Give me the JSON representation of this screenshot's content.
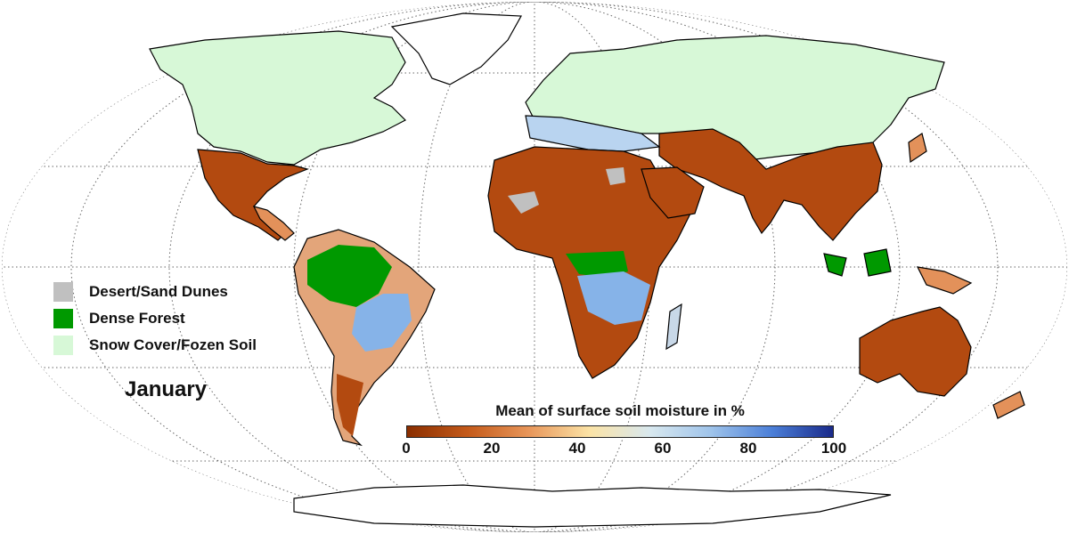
{
  "legend": [
    {
      "label": "Desert/Sand Dunes",
      "color": "#c0c0c0"
    },
    {
      "label": "Dense Forest",
      "color": "#009900"
    },
    {
      "label": "Snow Cover/Fozen Soil",
      "color": "#d7f8d7"
    }
  ],
  "month": "January",
  "colorbar": {
    "title": "Mean of surface soil moisture in %",
    "min": 0,
    "max": 100,
    "ticks": [
      "0",
      "20",
      "40",
      "60",
      "80",
      "100"
    ],
    "stops": [
      "#8a2e00",
      "#c45a1a",
      "#e8965a",
      "#fbe3a6",
      "#d8e8ef",
      "#9ec3ea",
      "#4b7fd8",
      "#1a2a8a"
    ]
  },
  "colors": {
    "snow": "#d7f8d7",
    "forest": "#009900",
    "desert": "#c0c0c0",
    "dry": "#b34a10",
    "medium": "#e89a5c",
    "wet": "#86b3e8"
  }
}
